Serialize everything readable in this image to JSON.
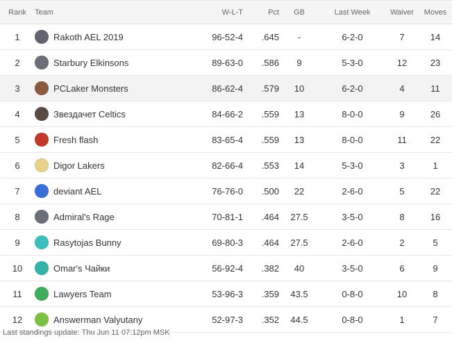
{
  "headers": {
    "rank": "Rank",
    "team": "Team",
    "wlt": "W-L-T",
    "pct": "Pct",
    "gb": "GB",
    "last_week": "Last Week",
    "waiver": "Waiver",
    "moves": "Moves"
  },
  "rows": [
    {
      "rank": "1",
      "team": "Rakoth AEL 2019",
      "wlt": "96-52-4",
      "pct": ".645",
      "gb": "-",
      "last_week": "6-2-0",
      "waiver": "7",
      "moves": "14",
      "logo_icon": "grey-jersey-icon",
      "logo_color": "#5f6470"
    },
    {
      "rank": "2",
      "team": "Starbury Elkinsons",
      "wlt": "89-63-0",
      "pct": ".586",
      "gb": "9",
      "last_week": "5-3-0",
      "waiver": "12",
      "moves": "23",
      "logo_icon": "grey-jersey-icon",
      "logo_color": "#6b7078"
    },
    {
      "rank": "3",
      "team": "PCLaker Monsters",
      "wlt": "86-62-4",
      "pct": ".579",
      "gb": "10",
      "last_week": "6-2-0",
      "waiver": "4",
      "moves": "11",
      "logo_icon": "team-photo-icon",
      "logo_color": "#8a5a3c"
    },
    {
      "rank": "4",
      "team": "Звездачет Celtics",
      "wlt": "84-66-2",
      "pct": ".559",
      "gb": "13",
      "last_week": "8-0-0",
      "waiver": "9",
      "moves": "26",
      "logo_icon": "team-photo-icon",
      "logo_color": "#5a4a44"
    },
    {
      "rank": "5",
      "team": "Fresh flash",
      "wlt": "83-65-4",
      "pct": ".559",
      "gb": "13",
      "last_week": "8-0-0",
      "waiver": "11",
      "moves": "22",
      "logo_icon": "flash-logo-icon",
      "logo_color": "#c0392b"
    },
    {
      "rank": "6",
      "team": "Digor Lakers",
      "wlt": "82-66-4",
      "pct": ".553",
      "gb": "14",
      "last_week": "5-3-0",
      "waiver": "3",
      "moves": "1",
      "logo_icon": "lakers-jersey-icon",
      "logo_color": "#e8d28a"
    },
    {
      "rank": "7",
      "team": "deviant AEL",
      "wlt": "76-76-0",
      "pct": ".500",
      "gb": "22",
      "last_week": "2-6-0",
      "waiver": "5",
      "moves": "22",
      "logo_icon": "blue-jersey-icon",
      "logo_color": "#3b6fd8"
    },
    {
      "rank": "8",
      "team": "Admiral's Rage",
      "wlt": "70-81-1",
      "pct": ".464",
      "gb": "27.5",
      "last_week": "3-5-0",
      "waiver": "8",
      "moves": "16",
      "logo_icon": "grey-jersey-icon",
      "logo_color": "#6b7078"
    },
    {
      "rank": "9",
      "team": "Rasytojas Bunny",
      "wlt": "69-80-3",
      "pct": ".464",
      "gb": "27.5",
      "last_week": "2-6-0",
      "waiver": "2",
      "moves": "5",
      "logo_icon": "teal-jersey-icon",
      "logo_color": "#3bbfbf"
    },
    {
      "rank": "10",
      "team": "Omar's Чайки",
      "wlt": "56-92-4",
      "pct": ".382",
      "gb": "40",
      "last_week": "3-5-0",
      "waiver": "6",
      "moves": "9",
      "logo_icon": "teal-jersey-icon",
      "logo_color": "#36b3a8"
    },
    {
      "rank": "11",
      "team": "Lawyers Team",
      "wlt": "53-96-3",
      "pct": ".359",
      "gb": "43.5",
      "last_week": "0-8-0",
      "waiver": "10",
      "moves": "8",
      "logo_icon": "green-jersey-icon",
      "logo_color": "#3fae5a"
    },
    {
      "rank": "12",
      "team": "Answerman Valyutany",
      "wlt": "52-97-3",
      "pct": ".352",
      "gb": "44.5",
      "last_week": "0-8-0",
      "waiver": "1",
      "moves": "7",
      "logo_icon": "green-jersey-icon",
      "logo_color": "#7cc242"
    }
  ],
  "highlight_row": 3,
  "footer": "Last standings update: Thu Jun 11 07:12pm MSK"
}
